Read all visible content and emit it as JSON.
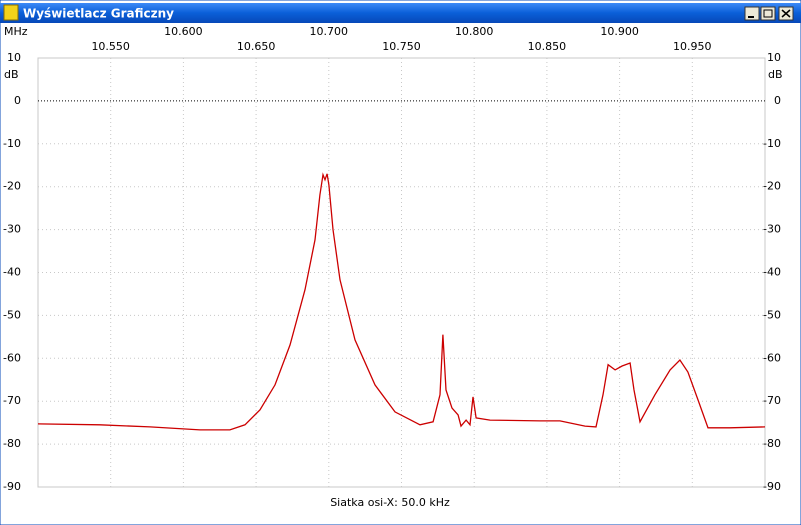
{
  "window": {
    "title": "Wyświetlacz Graficzny"
  },
  "chart_data": {
    "type": "line",
    "x_unit": "MHz",
    "y_unit": "dB",
    "xlabel": "Siatka osi-X: 50.0 kHz",
    "x": [
      10.5,
      10.5426,
      10.577,
      10.6114,
      10.632,
      10.6424,
      10.6527,
      10.663,
      10.6733,
      10.6836,
      10.6905,
      10.6939,
      10.696,
      10.6974,
      10.6988,
      10.7001,
      10.7029,
      10.7077,
      10.718,
      10.7318,
      10.7455,
      10.7627,
      10.7717,
      10.7765,
      10.7785,
      10.7806,
      10.7847,
      10.7889,
      10.7909,
      10.7944,
      10.7971,
      10.7992,
      10.8013,
      10.8109,
      10.8453,
      10.859,
      10.8762,
      10.8838,
      10.8886,
      10.8921,
      10.8969,
      10.9017,
      10.9072,
      10.9099,
      10.914,
      10.9243,
      10.9347,
      10.9415,
      10.947,
      10.9539,
      10.9608,
      10.9759,
      11.0
    ],
    "series": [
      {
        "color": "#cc0000",
        "values": [
          -75.3,
          -75.5,
          -76,
          -76.7,
          -76.7,
          -75.5,
          -72,
          -66.2,
          -56.9,
          -44,
          -32.4,
          -21.9,
          -17.2,
          -18.4,
          -17,
          -19.6,
          -30,
          -41.7,
          -55.7,
          -66.2,
          -72.5,
          -75.5,
          -74.8,
          -68.5,
          -54.5,
          -67.4,
          -71.6,
          -73.2,
          -75.8,
          -74.4,
          -75.5,
          -69,
          -73.9,
          -74.4,
          -74.6,
          -74.6,
          -75.8,
          -76,
          -68.5,
          -61.5,
          -62.7,
          -61.8,
          -61.1,
          -67.4,
          -74.8,
          -68.5,
          -62.7,
          -60.4,
          -63.2,
          -69.7,
          -76.2,
          -76.2,
          -76
        ]
      }
    ],
    "xlim": [
      10.5,
      11.0
    ],
    "xticks": [
      {
        "value": 10.55,
        "label": "10.550"
      },
      {
        "value": 10.6,
        "label": "10.600"
      },
      {
        "value": 10.65,
        "label": "10.650"
      },
      {
        "value": 10.7,
        "label": "10.700"
      },
      {
        "value": 10.75,
        "label": "10.750"
      },
      {
        "value": 10.8,
        "label": "10.800"
      },
      {
        "value": 10.85,
        "label": "10.850"
      },
      {
        "value": 10.9,
        "label": "10.900"
      },
      {
        "value": 10.95,
        "label": "10.950"
      }
    ],
    "ylim": [
      -90,
      10
    ],
    "yticks": [
      10,
      0,
      -10,
      -20,
      -30,
      -40,
      -50,
      -60,
      -70,
      -80,
      -90
    ],
    "grid": true
  }
}
